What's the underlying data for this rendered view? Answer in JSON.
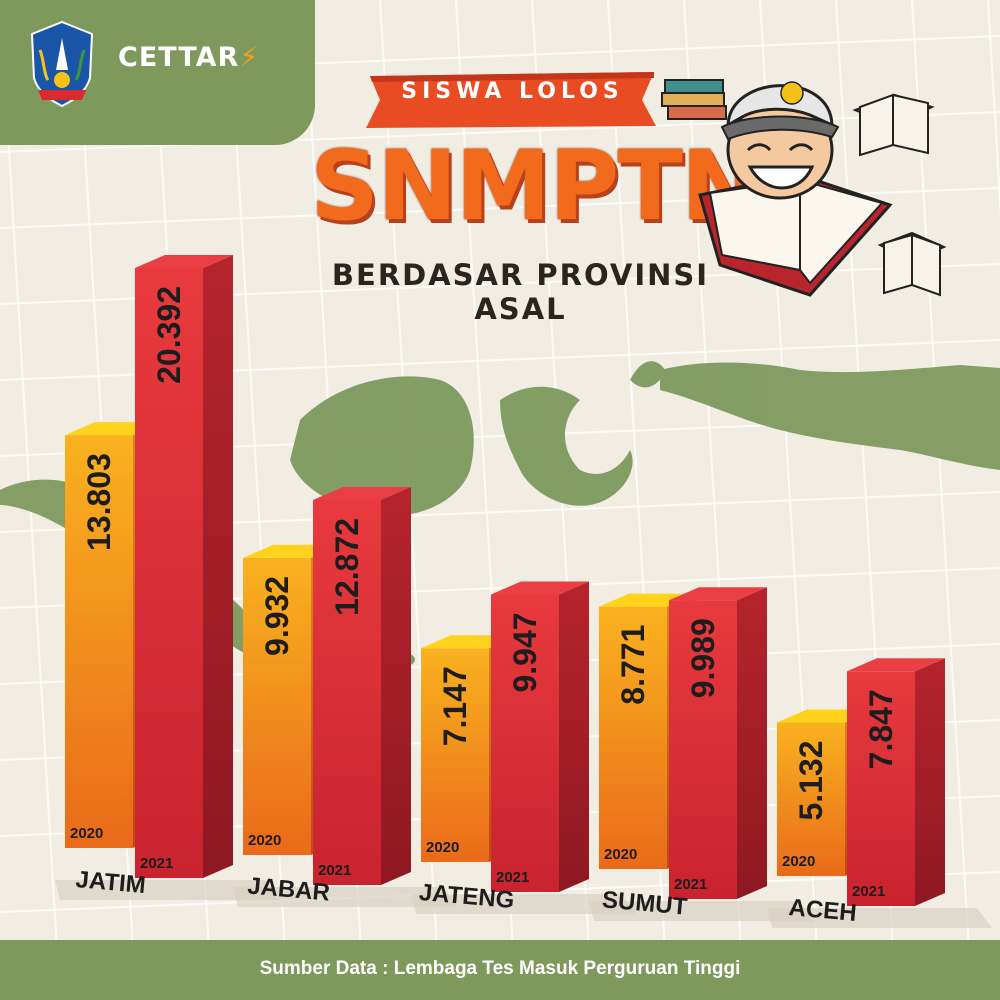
{
  "header": {
    "brand": "CETTAR",
    "banner": "SISWA LOLOS",
    "title": "SNMPTN",
    "subtitle": "BERDASAR PROVINSI ASAL"
  },
  "colors": {
    "bar_2020": "#f4a21d",
    "bar_2021": "#df2a36",
    "background": "#f1ede3",
    "green": "#7d9a5c"
  },
  "chart_data": {
    "type": "bar",
    "categories": [
      "JATIM",
      "JABAR",
      "JATENG",
      "SUMUT",
      "ACEH"
    ],
    "series": [
      {
        "name": "2020",
        "values": [
          13803,
          9932,
          7147,
          8771,
          5132
        ],
        "labels": [
          "13.803",
          "9.932",
          "7.147",
          "8.771",
          "5.132"
        ]
      },
      {
        "name": "2021",
        "values": [
          20392,
          12872,
          9947,
          9989,
          7847
        ],
        "labels": [
          "20.392",
          "12.872",
          "9.947",
          "9.989",
          "7.847"
        ]
      }
    ],
    "ylim": [
      0,
      20392
    ]
  },
  "footer": {
    "source": "Sumber Data : Lembaga Tes Masuk Perguruan Tinggi"
  }
}
